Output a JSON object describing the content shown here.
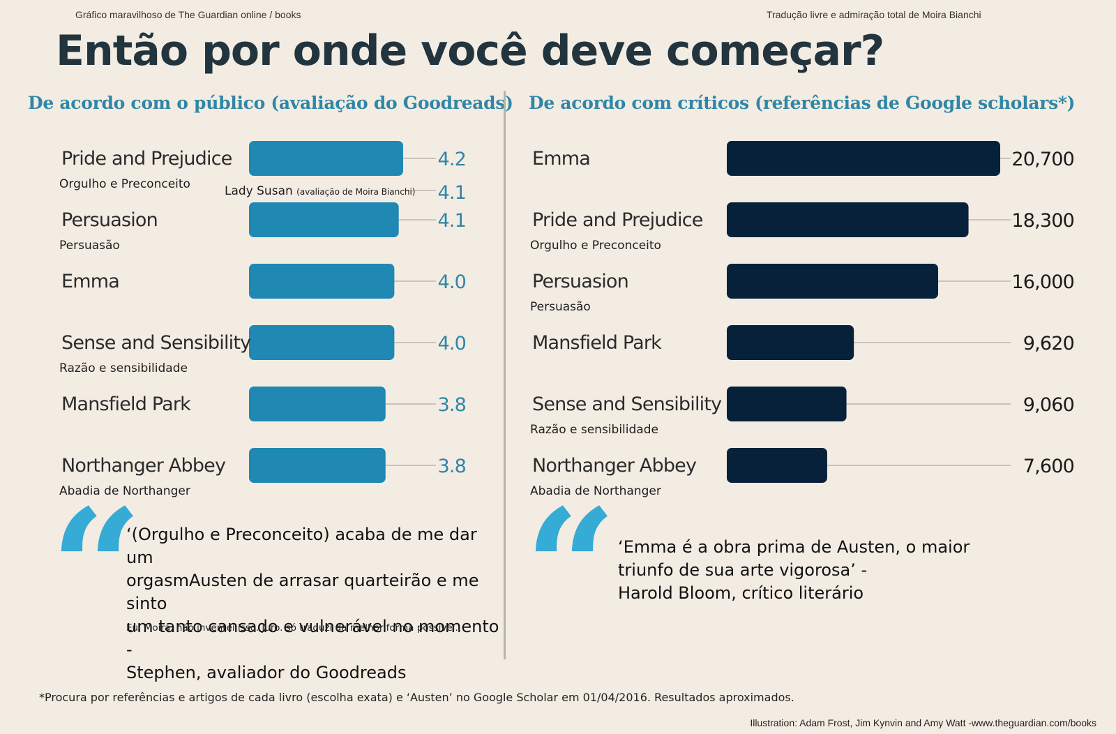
{
  "header": {
    "credit_left": "Gráfico maravilhoso de The Guardian online / books",
    "credit_right": "Tradução livre e admiração total de Moira Bianchi",
    "title": "Então por onde você deve começar?"
  },
  "colors": {
    "public_bar": "#1f88b3",
    "critics_bar": "#08213a",
    "accent": "#2f86a6",
    "quote_mark": "#35abd6"
  },
  "chart_data": [
    {
      "type": "bar",
      "title": "De acordo com o público (avaliação do Goodreads)",
      "orientation": "horizontal",
      "xlim": [
        0,
        4.2
      ],
      "categories": [
        "Pride and Prejudice",
        "Persuasion",
        "Emma",
        "Sense and Sensibility",
        "Mansfield Park",
        "Northanger Abbey"
      ],
      "translations": [
        "Orgulho e Preconceito",
        "Persuasão",
        "",
        "Razão e sensibilidade",
        "",
        "Abadia de Northanger"
      ],
      "values": [
        4.2,
        4.1,
        4.0,
        4.0,
        3.8,
        3.8
      ],
      "labels": [
        "4.2",
        "4.1",
        "4.0",
        "4.0",
        "3.8",
        "3.8"
      ],
      "annotation": {
        "book": "Lady Susan",
        "note": "(avaliação de Moira Bianchi)",
        "value": 4.1,
        "label": "4.1"
      }
    },
    {
      "type": "bar",
      "title": "De acordo com críticos (referências de Google scholars*)",
      "orientation": "horizontal",
      "xlim": [
        0,
        20700
      ],
      "categories": [
        "Emma",
        "Pride and Prejudice",
        "Persuasion",
        "Mansfield Park",
        "Sense and Sensibility",
        "Northanger Abbey"
      ],
      "translations": [
        "",
        "Orgulho e Preconceito",
        "Persuasão",
        "",
        "Razão e sensibilidade",
        "Abadia de Northanger"
      ],
      "values": [
        20700,
        18300,
        16000,
        9620,
        9060,
        7600
      ],
      "labels": [
        "20,700",
        "18,300",
        "16,000",
        "9,620",
        "9,060",
        "7,600"
      ]
    }
  ],
  "quotes": {
    "left_mark": "“",
    "left_lines": [
      "‘(Orgulho e Preconceito) acaba de me dar um",
      "orgasmAusten de arrasar quarteirão e me sinto",
      "um tanto cansado e vulnerável no momento -",
      "Stephen, avaliador do Goodreads"
    ],
    "left_note": "Eu, Moira, não inventei isso. Juro. só traduzi da melhor forma possível.",
    "right_mark": "“",
    "right_lines": [
      "‘Emma é a obra prima de Austen, o maior",
      "triunfo de sua arte vigorosa’ -",
      "Harold Bloom, crítico literário"
    ]
  },
  "footer": {
    "footnote": "*Procura por referências e artigos de cada livro (escolha exata) e ‘Austen’ no Google Scholar em 01/04/2016. Resultados aproximados.",
    "illustration_credit": "Illustration: Adam Frost, Jim Kynvin and Amy Watt -www.theguardian.com/books"
  }
}
